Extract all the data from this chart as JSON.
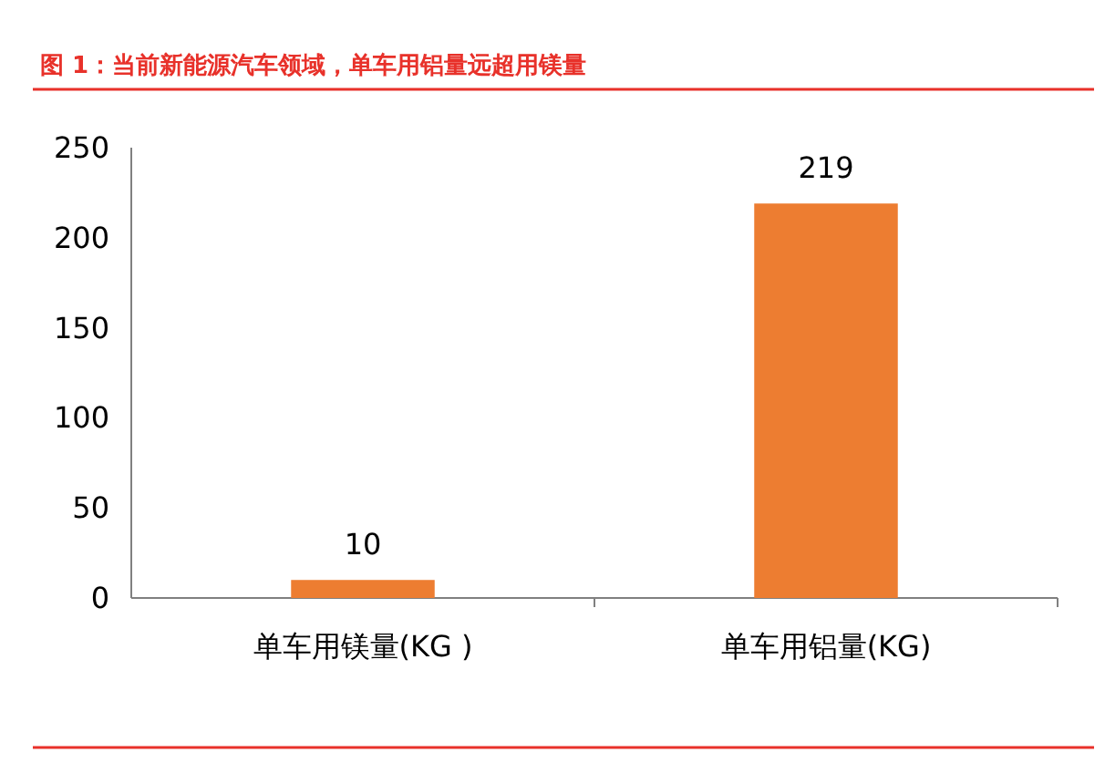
{
  "chart_data": {
    "type": "bar",
    "title": "图 1：当前新能源汽车领域，单车用铝量远超用镁量",
    "categories": [
      "单车用镁量(KG )",
      "单车用铝量(KG)"
    ],
    "values": [
      10,
      219
    ],
    "color": "#ed7d31",
    "ylim": [
      0,
      250
    ],
    "yticks": [
      0,
      50,
      100,
      150,
      200,
      250
    ],
    "data_labels": true
  }
}
